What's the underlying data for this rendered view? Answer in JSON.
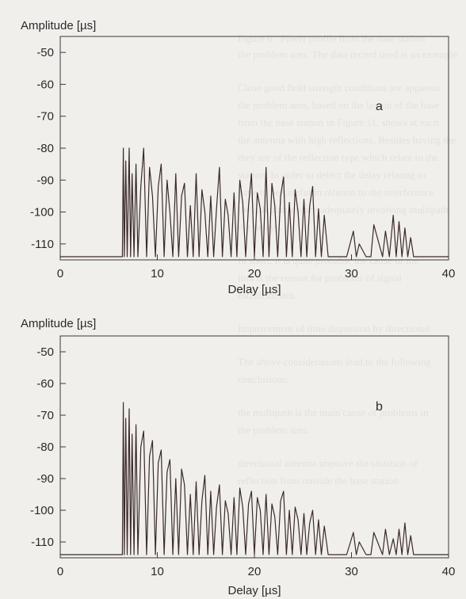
{
  "background_text": [
    "Figure 6 . Power profile from the base station",
    "the problem area. The data record used is an example",
    "Close good field strength conditions are apparent",
    "the problem area, based on the layout of the base",
    "from the base station in Figure 11, shows at each",
    "the antenna with high reflections. Besides having the",
    "they are of the reflection type which relate to the",
    "station. In order to detect the delay relating to",
    "have to be careful in relation to the interference",
    "the calculations are adequately involving multipath",
    "the delays.",
    "In short, it is quite probable the cause of the",
    "link is the reason for problems of signal",
    "establishment.",
    "Improvement of time dispersion by directional",
    "The above considerations lead to the following",
    "conclusions:",
    "the multipath is the main cause of problems in",
    "the problem area.",
    "directional antenna improve the situation of",
    "reflection from outside the base station"
  ],
  "chart_data": [
    {
      "type": "line",
      "panel_label": "a",
      "xlabel": "Delay [µs]",
      "ylabel": "Amplitude [µs]",
      "xlim": [
        0,
        40
      ],
      "ylim": [
        -115,
        -45
      ],
      "xticks": [
        0,
        10,
        20,
        30,
        40
      ],
      "yticks": [
        -50,
        -60,
        -70,
        -80,
        -90,
        -100,
        -110
      ],
      "grid": false,
      "series": [
        {
          "color": "#3a2a2a",
          "x": [
            0,
            6.4,
            6.5,
            6.6,
            6.75,
            6.9,
            7.1,
            7.25,
            7.4,
            7.6,
            7.8,
            8.0,
            8.3,
            8.6,
            8.9,
            9.2,
            9.5,
            9.8,
            10.1,
            10.4,
            10.7,
            11.0,
            11.3,
            11.6,
            11.9,
            12.2,
            12.5,
            12.8,
            13.1,
            13.4,
            13.7,
            14.0,
            14.3,
            14.6,
            14.9,
            15.2,
            15.5,
            15.8,
            16.1,
            16.4,
            16.7,
            17.0,
            17.3,
            17.6,
            17.9,
            18.2,
            18.5,
            18.8,
            19.1,
            19.4,
            19.7,
            20.0,
            20.3,
            20.6,
            20.9,
            21.2,
            21.5,
            21.8,
            22.1,
            22.4,
            22.7,
            23.0,
            23.3,
            23.6,
            23.9,
            24.2,
            24.5,
            24.8,
            25.1,
            25.4,
            25.7,
            26.0,
            26.3,
            26.6,
            26.9,
            27.2,
            27.6,
            28.0,
            29.5,
            30.2,
            30.5,
            30.8,
            31.5,
            32.0,
            32.3,
            33.2,
            33.5,
            33.9,
            34.3,
            34.6,
            34.9,
            35.2,
            35.5,
            35.8,
            36.1,
            36.4,
            37.0,
            38.0,
            40
          ],
          "y": [
            -114,
            -114,
            -80,
            -114,
            -84,
            -114,
            -80,
            -114,
            -88,
            -114,
            -85,
            -114,
            -92,
            -80,
            -114,
            -86,
            -95,
            -114,
            -92,
            -85,
            -114,
            -90,
            -100,
            -114,
            -88,
            -114,
            -95,
            -91,
            -114,
            -98,
            -114,
            -88,
            -114,
            -93,
            -100,
            -114,
            -95,
            -114,
            -99,
            -86,
            -114,
            -96,
            -101,
            -114,
            -94,
            -114,
            -90,
            -97,
            -114,
            -98,
            -88,
            -114,
            -94,
            -99,
            -114,
            -86,
            -114,
            -91,
            -98,
            -114,
            -95,
            -89,
            -114,
            -97,
            -114,
            -93,
            -100,
            -114,
            -96,
            -114,
            -98,
            -92,
            -114,
            -99,
            -114,
            -101,
            -114,
            -114,
            -114,
            -106,
            -114,
            -110,
            -114,
            -114,
            -104,
            -114,
            -106,
            -114,
            -101,
            -114,
            -103,
            -114,
            -105,
            -114,
            -108,
            -114,
            -114,
            -114,
            -114
          ]
        }
      ]
    },
    {
      "type": "line",
      "panel_label": "b",
      "xlabel": "Delay [µs]",
      "ylabel": "Amplitude [µs]",
      "xlim": [
        0,
        40
      ],
      "ylim": [
        -115,
        -45
      ],
      "xticks": [
        0,
        10,
        20,
        30,
        40
      ],
      "yticks": [
        -50,
        -60,
        -70,
        -80,
        -90,
        -100,
        -110
      ],
      "grid": false,
      "series": [
        {
          "color": "#3a2a2a",
          "x": [
            0,
            6.4,
            6.5,
            6.6,
            6.75,
            6.9,
            7.1,
            7.25,
            7.4,
            7.6,
            7.8,
            8.0,
            8.3,
            8.6,
            8.9,
            9.2,
            9.5,
            9.8,
            10.1,
            10.4,
            10.7,
            11.0,
            11.3,
            11.6,
            11.9,
            12.2,
            12.5,
            12.8,
            13.1,
            13.4,
            13.7,
            14.0,
            14.3,
            14.6,
            14.9,
            15.2,
            15.5,
            15.8,
            16.1,
            16.4,
            16.7,
            17.0,
            17.3,
            17.6,
            17.9,
            18.2,
            18.5,
            18.8,
            19.1,
            19.4,
            19.7,
            20.0,
            20.3,
            20.6,
            20.9,
            21.2,
            21.5,
            21.8,
            22.1,
            22.4,
            22.7,
            23.0,
            23.3,
            23.6,
            23.9,
            24.2,
            24.5,
            24.8,
            25.1,
            25.4,
            25.7,
            26.0,
            26.3,
            26.6,
            26.9,
            27.2,
            27.6,
            28.0,
            29.5,
            30.2,
            30.5,
            30.8,
            31.5,
            32.0,
            32.3,
            33.2,
            33.5,
            33.9,
            34.3,
            34.6,
            34.9,
            35.2,
            35.5,
            35.8,
            36.1,
            36.4,
            37.0,
            38.0,
            40
          ],
          "y": [
            -114,
            -114,
            -66,
            -114,
            -71,
            -114,
            -68,
            -114,
            -76,
            -114,
            -73,
            -114,
            -80,
            -75,
            -114,
            -83,
            -78,
            -114,
            -85,
            -81,
            -114,
            -88,
            -84,
            -114,
            -90,
            -114,
            -87,
            -92,
            -114,
            -95,
            -114,
            -91,
            -114,
            -97,
            -89,
            -114,
            -94,
            -114,
            -99,
            -92,
            -114,
            -97,
            -101,
            -114,
            -96,
            -114,
            -93,
            -99,
            -114,
            -98,
            -94,
            -114,
            -96,
            -100,
            -114,
            -95,
            -114,
            -98,
            -102,
            -114,
            -97,
            -94,
            -114,
            -100,
            -114,
            -99,
            -103,
            -114,
            -101,
            -114,
            -104,
            -100,
            -114,
            -103,
            -114,
            -105,
            -114,
            -114,
            -114,
            -107,
            -114,
            -110,
            -114,
            -114,
            -107,
            -114,
            -106,
            -114,
            -109,
            -114,
            -106,
            -114,
            -104,
            -114,
            -108,
            -114,
            -114,
            -114,
            -114
          ]
        }
      ]
    }
  ]
}
